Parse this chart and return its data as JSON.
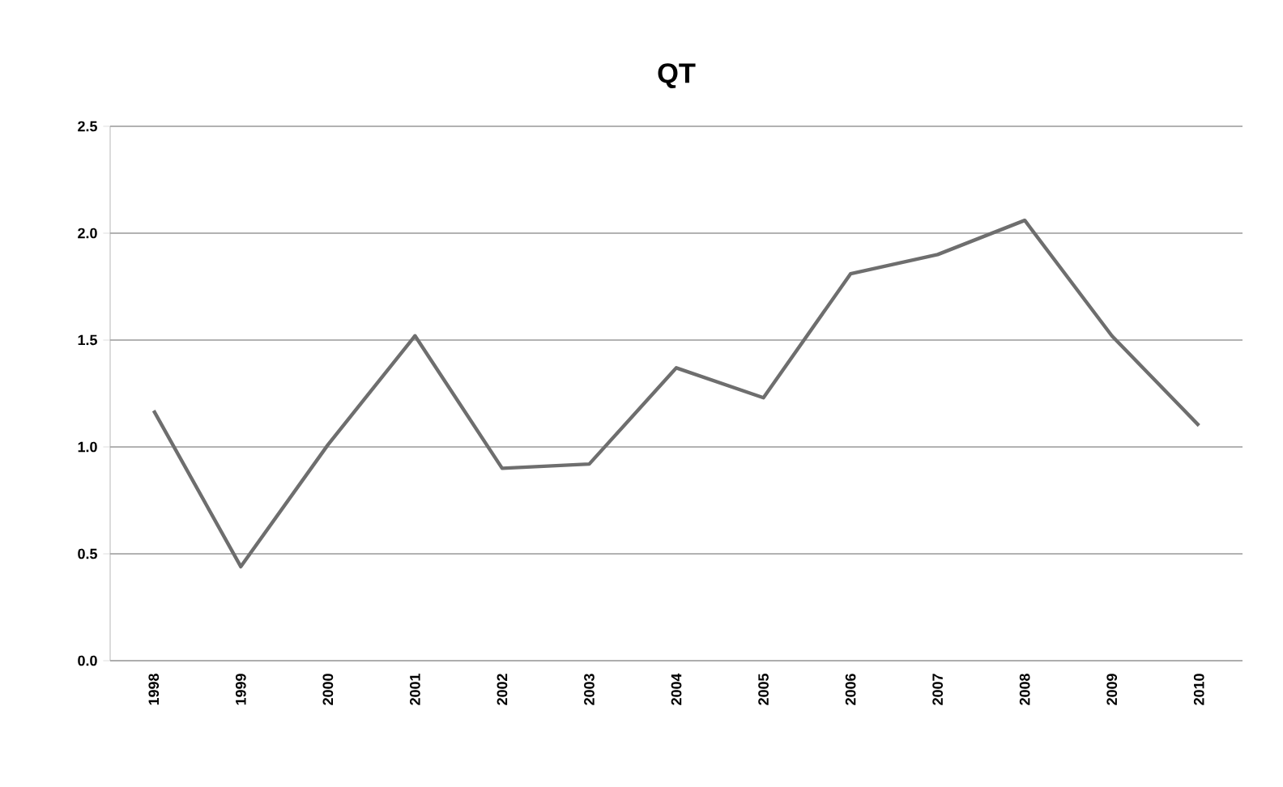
{
  "chart_data": {
    "type": "line",
    "title": "QT",
    "categories": [
      "1998",
      "1999",
      "2000",
      "2001",
      "2002",
      "2003",
      "2004",
      "2005",
      "2006",
      "2007",
      "2008",
      "2009",
      "2010"
    ],
    "series": [
      {
        "color": "#6e6e6e",
        "values": [
          1.17,
          0.44,
          1.01,
          1.52,
          0.9,
          0.92,
          1.37,
          1.23,
          1.81,
          1.9,
          2.06,
          1.52,
          1.1
        ]
      }
    ],
    "ylim": [
      0,
      2.5
    ],
    "yticks": [
      {
        "value": 0,
        "label": "0.0"
      },
      {
        "value": 0.5,
        "label": "0.5"
      },
      {
        "value": 1,
        "label": "1.0"
      },
      {
        "value": 1.5,
        "label": "1.5"
      },
      {
        "value": 2,
        "label": "2.0"
      },
      {
        "value": 2.5,
        "label": "2.5"
      }
    ],
    "grid": "y",
    "marker": "none",
    "line_style": "solid"
  }
}
